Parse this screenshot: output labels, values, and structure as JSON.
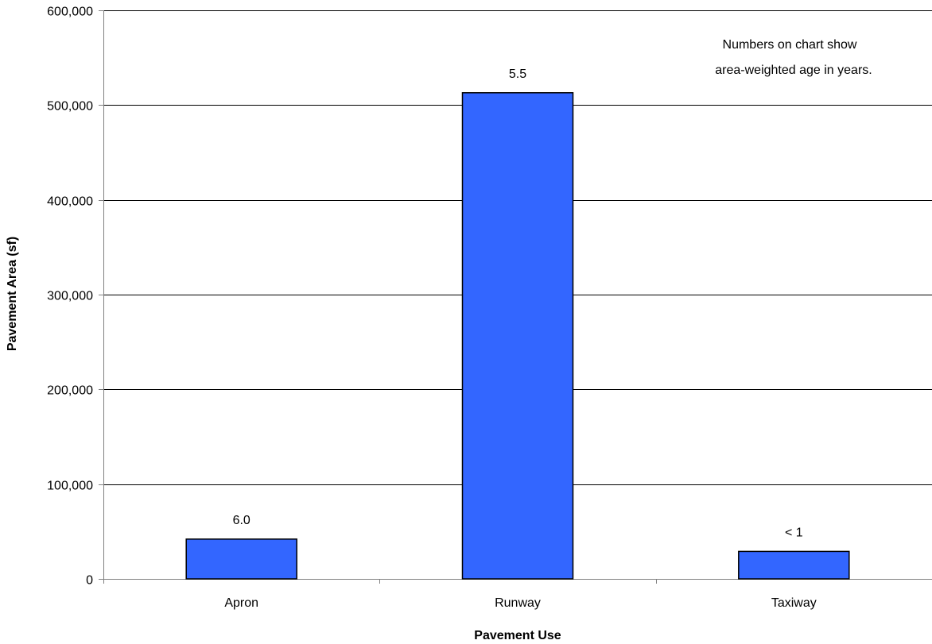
{
  "chart_data": {
    "type": "bar",
    "title": "",
    "xlabel": "Pavement Use",
    "ylabel": "Pavement Area (sf)",
    "categories": [
      "Apron",
      "Runway",
      "Taxiway"
    ],
    "values": [
      42000,
      513000,
      29000
    ],
    "data_labels": [
      "6.0",
      "5.5",
      "< 1"
    ],
    "ylim": [
      0,
      600000
    ],
    "yticks": [
      0,
      100000,
      200000,
      300000,
      400000,
      500000,
      600000
    ],
    "ytick_labels": [
      "0",
      "100,000",
      "200,000",
      "300,000",
      "400,000",
      "500,000",
      "600,000"
    ],
    "annotation": [
      "Numbers on chart show",
      "area-weighted age in years."
    ],
    "grid": true,
    "legend": "none",
    "colors": {
      "bar_fill": "#3366ff",
      "bar_stroke": "#000000",
      "grid": "#000000",
      "axis": "#808080",
      "background": "#ffffff"
    }
  }
}
